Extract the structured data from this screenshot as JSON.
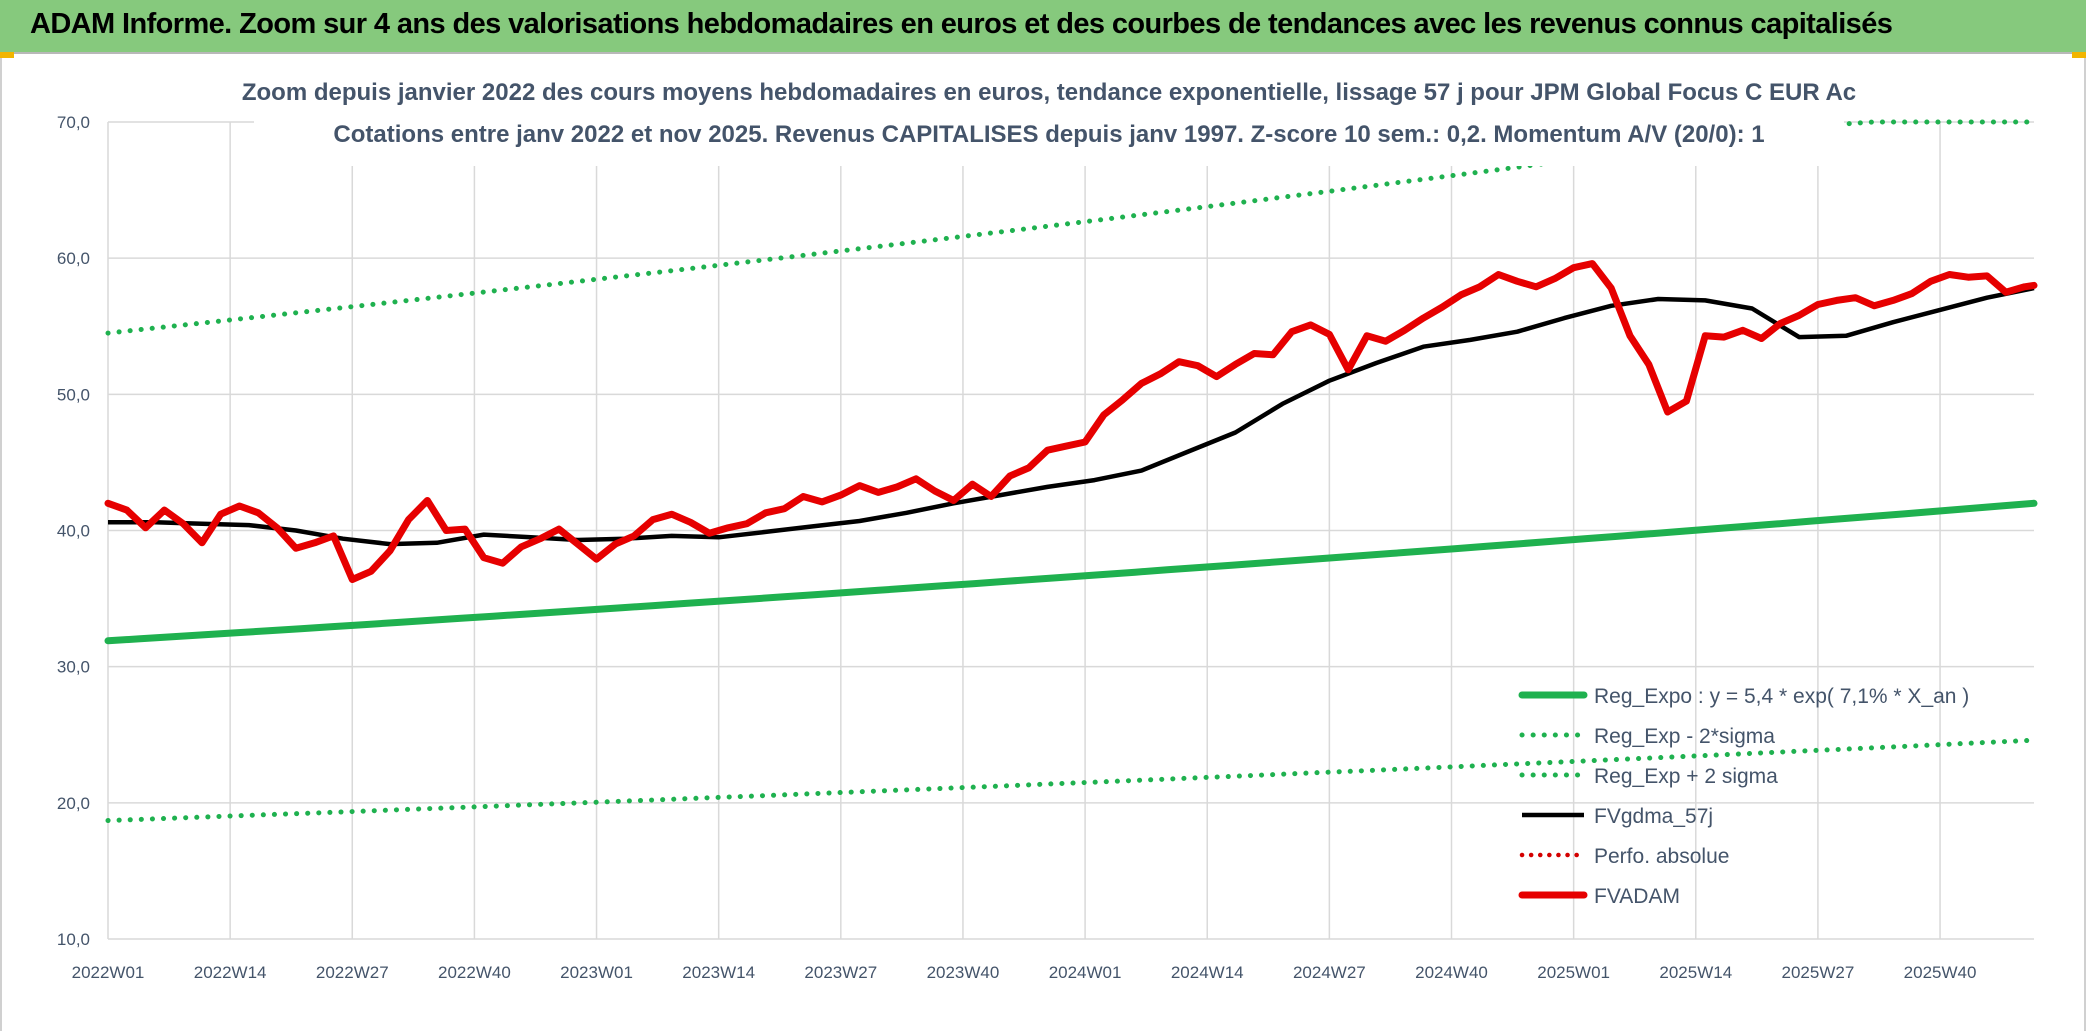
{
  "header": {
    "title": "ADAM Informe. Zoom sur 4 ans des valorisations hebdomadaires en euros et des courbes de tendances avec les revenus connus capitalisés"
  },
  "colors": {
    "header_bg": "#86c97d",
    "green": "#1fb14f",
    "red": "#e60000",
    "black": "#000000",
    "dotted_red": "#d40000",
    "text": "#44546a"
  },
  "chart_data": {
    "type": "line",
    "title": "Zoom depuis janvier 2022 des cours moyens hebdomadaires en euros, tendance exponentielle, lissage 57 j pour JPM Global Focus C EUR Ac",
    "subtitle": "Cotations entre janv 2022 et nov 2025. Revenus CAPITALISES depuis janv 1997. Z-score 10 sem.: 0,2. Momentum A/V (20/0): 1",
    "ylim": [
      10,
      70
    ],
    "yticks": [
      "70,0",
      "60,0",
      "50,0",
      "40,0",
      "30,0",
      "20,0",
      "10,0"
    ],
    "xticks": [
      "2022W01",
      "2022W14",
      "2022W27",
      "2022W40",
      "2023W01",
      "2023W14",
      "2023W27",
      "2023W40",
      "2024W01",
      "2024W14",
      "2024W27",
      "2024W40",
      "2025W01",
      "2025W14",
      "2025W27",
      "2025W40"
    ],
    "grid": true,
    "legend_position": "bottom-right",
    "series": [
      {
        "name": "Reg_Expo : y = 5,4 * exp( 7,1% *  X_an )",
        "style": "solid-green",
        "x": [
          0,
          205
        ],
        "values": [
          31.9,
          42.0
        ]
      },
      {
        "name": "Reg_Exp - 2*sigma",
        "style": "dotted-green",
        "x": [
          0,
          205
        ],
        "values": [
          18.7,
          24.6
        ]
      },
      {
        "name": "Reg_Exp + 2 sigma",
        "style": "dotted-green",
        "x": [
          0,
          205
        ],
        "values": [
          54.5,
          71.8
        ]
      },
      {
        "name": "FVgdma_57j",
        "style": "solid-black",
        "x": [
          0,
          5,
          10,
          15,
          20,
          25,
          30,
          35,
          40,
          45,
          50,
          55,
          60,
          65,
          70,
          75,
          80,
          85,
          90,
          95,
          100,
          105,
          110,
          115,
          120,
          125,
          130,
          135,
          140,
          145,
          150,
          155,
          160,
          165,
          170,
          175,
          180,
          185,
          190,
          195,
          200,
          205
        ],
        "values": [
          40.6,
          40.6,
          40.5,
          40.4,
          40.0,
          39.4,
          39.0,
          39.1,
          39.7,
          39.5,
          39.3,
          39.4,
          39.6,
          39.5,
          39.9,
          40.3,
          40.7,
          41.3,
          42.0,
          42.6,
          43.2,
          43.7,
          44.4,
          45.8,
          47.2,
          49.3,
          51.0,
          52.3,
          53.5,
          54.0,
          54.6,
          55.6,
          56.5,
          57.0,
          56.9,
          56.3,
          54.2,
          54.3,
          55.3,
          56.2,
          57.1,
          57.8
        ]
      },
      {
        "name": "Perfo. absolue",
        "style": "dotted-red",
        "x": [],
        "values": []
      },
      {
        "name": "FVADAM",
        "style": "solid-red",
        "x": [
          0,
          2,
          4,
          6,
          8,
          10,
          12,
          14,
          16,
          18,
          20,
          22,
          24,
          26,
          28,
          30,
          32,
          34,
          36,
          38,
          40,
          42,
          44,
          46,
          48,
          50,
          52,
          54,
          56,
          58,
          60,
          62,
          64,
          66,
          68,
          70,
          72,
          74,
          76,
          78,
          80,
          82,
          84,
          86,
          88,
          90,
          92,
          94,
          96,
          98,
          100,
          102,
          104,
          106,
          108,
          110,
          112,
          114,
          116,
          118,
          120,
          122,
          124,
          126,
          128,
          130,
          132,
          134,
          136,
          138,
          140,
          142,
          144,
          146,
          148,
          150,
          152,
          154,
          156,
          158,
          160,
          162,
          164,
          166,
          168,
          170,
          172,
          174,
          176,
          178,
          180,
          182,
          184,
          186,
          188,
          190,
          192,
          194,
          196,
          198,
          200,
          202,
          204,
          205
        ],
        "values": [
          42.0,
          41.5,
          40.2,
          41.5,
          40.5,
          39.1,
          41.2,
          41.8,
          41.3,
          40.2,
          38.7,
          39.1,
          39.6,
          36.4,
          37.0,
          38.5,
          40.8,
          42.2,
          40.0,
          40.1,
          38.0,
          37.6,
          38.8,
          39.4,
          40.1,
          39.0,
          37.9,
          39.0,
          39.6,
          40.8,
          41.2,
          40.6,
          39.8,
          40.2,
          40.5,
          41.3,
          41.6,
          42.5,
          42.1,
          42.6,
          43.3,
          42.8,
          43.2,
          43.8,
          42.9,
          42.2,
          43.4,
          42.5,
          44.0,
          44.6,
          45.9,
          46.2,
          46.5,
          48.5,
          49.6,
          50.8,
          51.5,
          52.4,
          52.1,
          51.3,
          52.2,
          53.0,
          52.9,
          54.6,
          55.1,
          54.4,
          51.8,
          54.3,
          53.9,
          54.7,
          55.6,
          56.4,
          57.3,
          57.9,
          58.8,
          58.3,
          57.9,
          58.5,
          59.3,
          59.6,
          57.8,
          54.3,
          52.2,
          48.7,
          49.5,
          54.3,
          54.2,
          54.7,
          54.1,
          55.2,
          55.8,
          56.6,
          56.9,
          57.1,
          56.5,
          56.9,
          57.4,
          58.3,
          58.8,
          58.6,
          58.7,
          57.5,
          57.9,
          58.0
        ]
      }
    ]
  }
}
